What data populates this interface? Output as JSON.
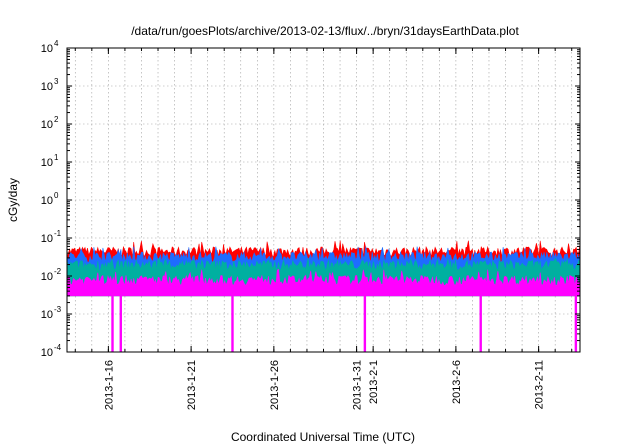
{
  "chart_data": {
    "type": "area",
    "title": "/data/run/goesPlots/archive/2013-02-13/flux/../bryn/31daysEarthData.plot",
    "xlabel": "Coordinated Universal Time (UTC)",
    "ylabel": "cGy/day",
    "yscale": "log",
    "ylim": [
      0.0001,
      10000
    ],
    "xlim": [
      "2013-01-13T12:00",
      "2013-02-13T12:00"
    ],
    "y_ticks": [
      {
        "value": 0.0001,
        "base": "10",
        "exp": "-4"
      },
      {
        "value": 0.001,
        "base": "10",
        "exp": "-3"
      },
      {
        "value": 0.01,
        "base": "10",
        "exp": "-2"
      },
      {
        "value": 0.1,
        "base": "10",
        "exp": "-1"
      },
      {
        "value": 1,
        "base": "10",
        "exp": "0"
      },
      {
        "value": 10,
        "base": "10",
        "exp": "1"
      },
      {
        "value": 100,
        "base": "10",
        "exp": "2"
      },
      {
        "value": 1000,
        "base": "10",
        "exp": "3"
      },
      {
        "value": 10000,
        "base": "10",
        "exp": "4"
      }
    ],
    "x_ticks": [
      {
        "date": "2013-01-16",
        "label": "2013-1-16"
      },
      {
        "date": "2013-01-21",
        "label": "2013-1-21"
      },
      {
        "date": "2013-01-26",
        "label": "2013-1-26"
      },
      {
        "date": "2013-01-31",
        "label": "2013-1-31"
      },
      {
        "date": "2013-02-01",
        "label": "2013-2-1"
      },
      {
        "date": "2013-02-06",
        "label": "2013-2-6"
      },
      {
        "date": "2013-02-11",
        "label": "2013-2-11"
      }
    ],
    "grid": true,
    "legend": "none",
    "series": [
      {
        "color": "#ff0000",
        "typical": 0.045,
        "peak": 0.085
      },
      {
        "color": "#1e6cff",
        "typical": 0.033,
        "peak": 0.06
      },
      {
        "color": "#00b0a0",
        "typical": 0.02,
        "peak": 0.03
      },
      {
        "color": "#ff00ff",
        "typical": 0.008,
        "peak": 0.015,
        "floor": 0.003
      }
    ],
    "dropouts": [
      "2013-01-16T06:00",
      "2013-01-16T18:00",
      "2013-01-23T12:00",
      "2013-01-31T12:00",
      "2013-02-07T12:00",
      "2013-02-13T06:00"
    ]
  }
}
